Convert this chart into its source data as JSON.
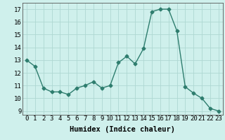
{
  "x": [
    0,
    1,
    2,
    3,
    4,
    5,
    6,
    7,
    8,
    9,
    10,
    11,
    12,
    13,
    14,
    15,
    16,
    17,
    18,
    19,
    20,
    21,
    22,
    23
  ],
  "y": [
    13.0,
    12.5,
    10.8,
    10.5,
    10.5,
    10.3,
    10.8,
    11.0,
    11.3,
    10.8,
    11.0,
    12.8,
    13.3,
    12.7,
    13.9,
    16.8,
    17.0,
    17.0,
    15.3,
    10.9,
    10.4,
    10.0,
    9.2,
    9.0
  ],
  "line_color": "#2e7d6e",
  "bg_color": "#cff0ec",
  "grid_color": "#aed8d2",
  "xlabel": "Humidex (Indice chaleur)",
  "ylabel_ticks": [
    9,
    10,
    11,
    12,
    13,
    14,
    15,
    16,
    17
  ],
  "ylim": [
    8.7,
    17.5
  ],
  "xlim": [
    -0.5,
    23.5
  ],
  "marker": "D",
  "markersize": 2.5,
  "linewidth": 1.0,
  "xlabel_fontsize": 7.5,
  "tick_fontsize": 6.5
}
